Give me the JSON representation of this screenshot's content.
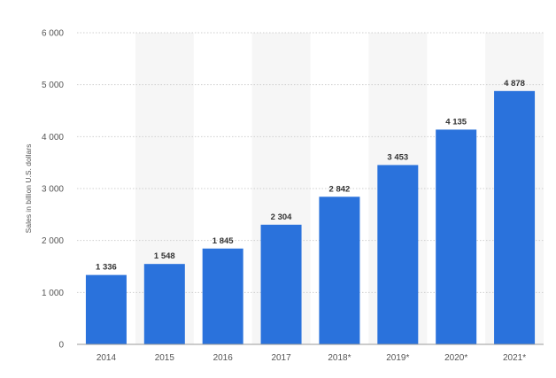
{
  "chart_data": {
    "type": "bar",
    "categories": [
      "2014",
      "2015",
      "2016",
      "2017",
      "2018*",
      "2019*",
      "2020*",
      "2021*"
    ],
    "values": [
      1336,
      1548,
      1845,
      2304,
      2842,
      3453,
      4135,
      4878
    ],
    "value_labels": [
      "1 336",
      "1 548",
      "1 845",
      "2 304",
      "2 842",
      "3 453",
      "4 135",
      "4 878"
    ],
    "title": "",
    "xlabel": "",
    "ylabel": "Sales in billion U.S. dollars",
    "ylim": [
      0,
      6000
    ],
    "yticks": [
      0,
      1000,
      2000,
      3000,
      4000,
      5000,
      6000
    ],
    "ytick_labels": [
      "0",
      "1 000",
      "2 000",
      "3 000",
      "4 000",
      "5 000",
      "6 000"
    ],
    "grid": true,
    "bar_color": "#2a72dc",
    "band_color": "#f6f6f6"
  }
}
